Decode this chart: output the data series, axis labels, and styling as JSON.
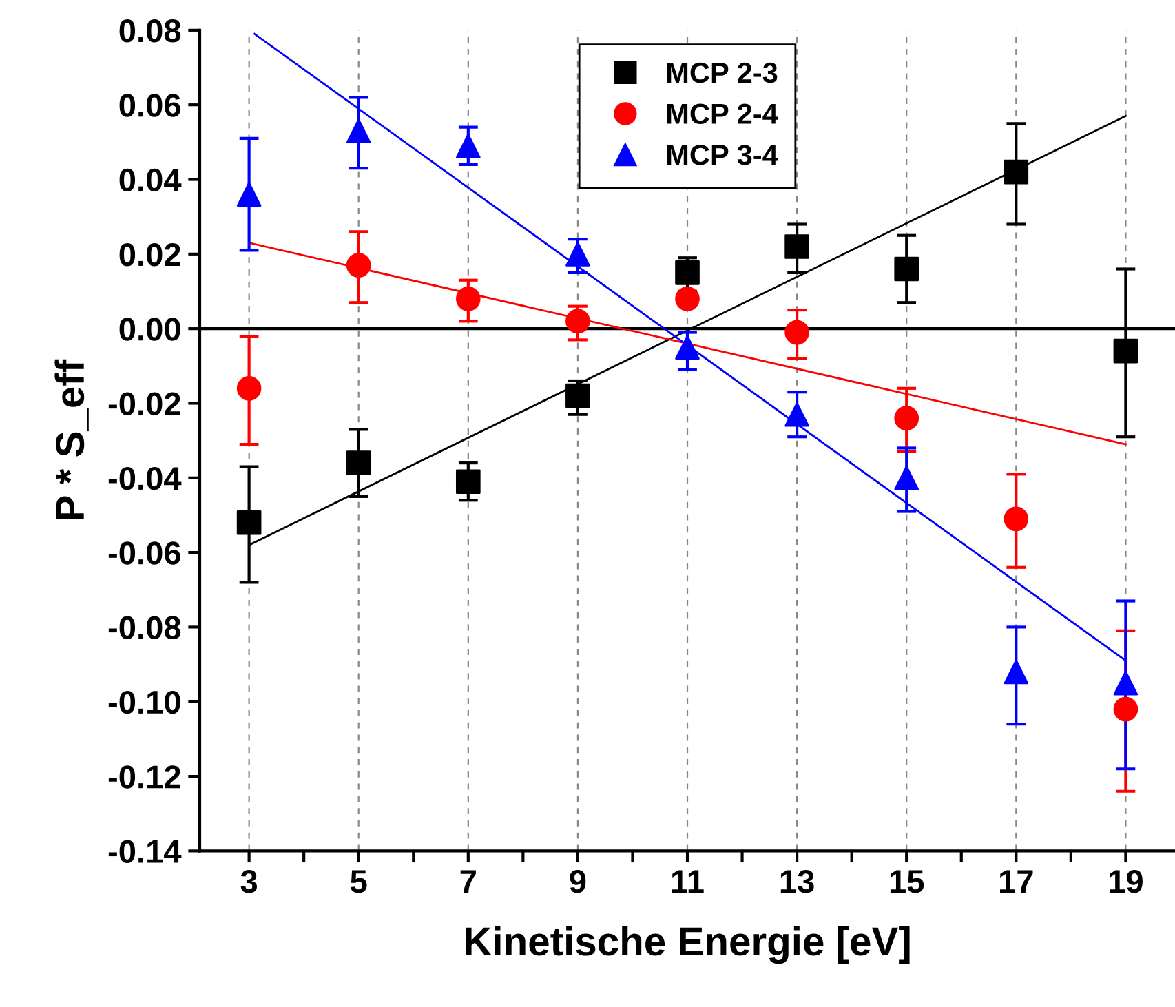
{
  "chart_data": {
    "type": "scatter",
    "xlabel": "Kinetische Energie [eV]",
    "ylabel": "P * S_eff",
    "x": [
      3,
      5,
      7,
      9,
      11,
      13,
      15,
      17,
      19
    ],
    "series": [
      {
        "name": "MCP 2-3",
        "color": "#000000",
        "marker": "square",
        "values": [
          -0.052,
          -0.036,
          -0.041,
          -0.018,
          0.015,
          0.022,
          0.016,
          0.042,
          -0.006
        ],
        "errors": [
          [
            -0.068,
            -0.037
          ],
          [
            -0.045,
            -0.027
          ],
          [
            -0.046,
            -0.036
          ],
          [
            -0.023,
            -0.014
          ],
          [
            0.01,
            0.019
          ],
          [
            0.015,
            0.028
          ],
          [
            0.007,
            0.025
          ],
          [
            0.028,
            0.055
          ],
          [
            -0.029,
            0.016
          ]
        ]
      },
      {
        "name": "MCP 2-4",
        "color": "#ff0000",
        "marker": "circle",
        "values": [
          -0.016,
          0.017,
          0.008,
          0.002,
          0.008,
          -0.001,
          -0.024,
          -0.051,
          -0.102
        ],
        "errors": [
          [
            -0.031,
            -0.002
          ],
          [
            0.007,
            0.026
          ],
          [
            0.002,
            0.013
          ],
          [
            -0.003,
            0.006
          ],
          null,
          [
            -0.008,
            0.005
          ],
          [
            -0.033,
            -0.016
          ],
          [
            -0.064,
            -0.039
          ],
          [
            -0.124,
            -0.081
          ]
        ]
      },
      {
        "name": "MCP 3-4",
        "color": "#0000ff",
        "marker": "triangle",
        "values": [
          0.036,
          0.053,
          0.049,
          0.02,
          -0.005,
          -0.023,
          -0.04,
          -0.092,
          -0.095
        ],
        "errors": [
          [
            0.021,
            0.051
          ],
          [
            0.043,
            0.062
          ],
          [
            0.044,
            0.054
          ],
          [
            0.015,
            0.024
          ],
          [
            -0.011,
            -0.001
          ],
          [
            -0.029,
            -0.017
          ],
          [
            -0.049,
            -0.032
          ],
          [
            -0.106,
            -0.08
          ],
          [
            -0.118,
            -0.073
          ]
        ]
      },
      {
        "type": "line",
        "color": "#000000",
        "x": [
          3,
          19
        ],
        "values": [
          -0.058,
          0.057
        ]
      },
      {
        "type": "line",
        "color": "#ff0000",
        "x": [
          3,
          19
        ],
        "values": [
          0.023,
          -0.031
        ]
      },
      {
        "type": "line",
        "color": "#0000ff",
        "x": [
          3.1,
          19
        ],
        "values": [
          0.079,
          -0.089
        ]
      }
    ],
    "xlim": [
      2.1,
      19.9
    ],
    "xticks": [
      3,
      {
        "value": 4,
        "label": null
      },
      5,
      {
        "value": 6,
        "label": null
      },
      7,
      {
        "value": 8,
        "label": null
      },
      9,
      {
        "value": 10,
        "label": null
      },
      11,
      {
        "value": 12,
        "label": null
      },
      13,
      {
        "value": 14,
        "label": null
      },
      15,
      {
        "value": 16,
        "label": null
      },
      17,
      {
        "value": 18,
        "label": null
      },
      19
    ],
    "ylim": [
      -0.14,
      0.08
    ],
    "yticks": [
      {
        "value": -0.14,
        "label": "-0.14"
      },
      {
        "value": -0.12,
        "label": "-0.12"
      },
      {
        "value": -0.1,
        "label": "-0.10"
      },
      {
        "value": -0.08,
        "label": "-0.08"
      },
      {
        "value": -0.06,
        "label": "-0.06"
      },
      {
        "value": -0.04,
        "label": "-0.04"
      },
      {
        "value": -0.02,
        "label": "-0.02"
      },
      {
        "value": 0,
        "label": "0.00"
      },
      {
        "value": 0.02,
        "label": "0.02"
      },
      {
        "value": 0.04,
        "label": "0.04"
      },
      {
        "value": 0.06,
        "label": "0.06"
      },
      {
        "value": 0.08,
        "label": "0.08"
      }
    ],
    "ref_lines": [
      {
        "axis": "y",
        "value": 0,
        "color": "#000000"
      }
    ],
    "grid": "x",
    "legend": "top"
  }
}
